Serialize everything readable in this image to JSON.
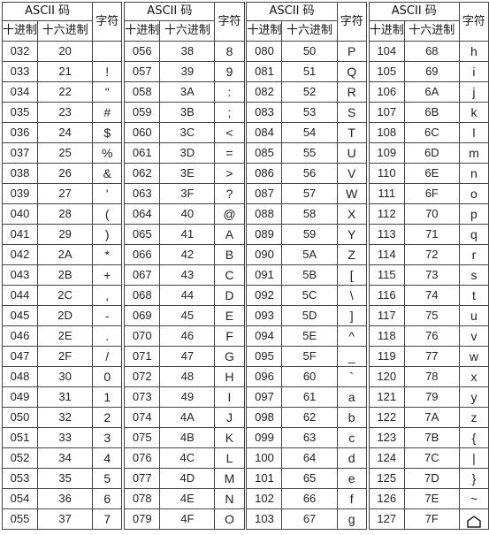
{
  "headers": {
    "ascii": "ASCII 码",
    "dec": "十进制",
    "hex": "十六进制",
    "char": "字符"
  },
  "blocks": [
    [
      [
        "032",
        "20",
        ""
      ],
      [
        "033",
        "21",
        "!"
      ],
      [
        "034",
        "22",
        "\""
      ],
      [
        "035",
        "23",
        "#"
      ],
      [
        "036",
        "24",
        "$"
      ],
      [
        "037",
        "25",
        "%"
      ],
      [
        "038",
        "26",
        "&"
      ],
      [
        "039",
        "27",
        "'"
      ],
      [
        "040",
        "28",
        "("
      ],
      [
        "041",
        "29",
        ")"
      ],
      [
        "042",
        "2A",
        "*"
      ],
      [
        "043",
        "2B",
        "+"
      ],
      [
        "044",
        "2C",
        ","
      ],
      [
        "045",
        "2D",
        "-"
      ],
      [
        "046",
        "2E",
        "."
      ],
      [
        "047",
        "2F",
        "/"
      ],
      [
        "048",
        "30",
        "0"
      ],
      [
        "049",
        "31",
        "1"
      ],
      [
        "050",
        "32",
        "2"
      ],
      [
        "051",
        "33",
        "3"
      ],
      [
        "052",
        "34",
        "4"
      ],
      [
        "053",
        "35",
        "5"
      ],
      [
        "054",
        "36",
        "6"
      ],
      [
        "055",
        "37",
        "7"
      ]
    ],
    [
      [
        "056",
        "38",
        "8"
      ],
      [
        "057",
        "39",
        "9"
      ],
      [
        "058",
        "3A",
        ":"
      ],
      [
        "059",
        "3B",
        ";"
      ],
      [
        "060",
        "3C",
        "<"
      ],
      [
        "061",
        "3D",
        "="
      ],
      [
        "062",
        "3E",
        ">"
      ],
      [
        "063",
        "3F",
        "?"
      ],
      [
        "064",
        "40",
        "@"
      ],
      [
        "065",
        "41",
        "A"
      ],
      [
        "066",
        "42",
        "B"
      ],
      [
        "067",
        "43",
        "C"
      ],
      [
        "068",
        "44",
        "D"
      ],
      [
        "069",
        "45",
        "E"
      ],
      [
        "070",
        "46",
        "F"
      ],
      [
        "071",
        "47",
        "G"
      ],
      [
        "072",
        "48",
        "H"
      ],
      [
        "073",
        "49",
        "I"
      ],
      [
        "074",
        "4A",
        "J"
      ],
      [
        "075",
        "4B",
        "K"
      ],
      [
        "076",
        "4C",
        "L"
      ],
      [
        "077",
        "4D",
        "M"
      ],
      [
        "078",
        "4E",
        "N"
      ],
      [
        "079",
        "4F",
        "O"
      ]
    ],
    [
      [
        "080",
        "50",
        "P"
      ],
      [
        "081",
        "51",
        "Q"
      ],
      [
        "082",
        "52",
        "R"
      ],
      [
        "083",
        "53",
        "S"
      ],
      [
        "084",
        "54",
        "T"
      ],
      [
        "085",
        "55",
        "U"
      ],
      [
        "086",
        "56",
        "V"
      ],
      [
        "087",
        "57",
        "W"
      ],
      [
        "088",
        "58",
        "X"
      ],
      [
        "089",
        "59",
        "Y"
      ],
      [
        "090",
        "5A",
        "Z"
      ],
      [
        "091",
        "5B",
        "["
      ],
      [
        "092",
        "5C",
        "\\"
      ],
      [
        "093",
        "5D",
        "]"
      ],
      [
        "094",
        "5E",
        "^"
      ],
      [
        "095",
        "5F",
        "_"
      ],
      [
        "096",
        "60",
        "`"
      ],
      [
        "097",
        "61",
        "a"
      ],
      [
        "098",
        "62",
        "b"
      ],
      [
        "099",
        "63",
        "c"
      ],
      [
        "100",
        "64",
        "d"
      ],
      [
        "101",
        "65",
        "e"
      ],
      [
        "102",
        "66",
        "f"
      ],
      [
        "103",
        "67",
        "g"
      ]
    ],
    [
      [
        "104",
        "68",
        "h"
      ],
      [
        "105",
        "69",
        "i"
      ],
      [
        "106",
        "6A",
        "j"
      ],
      [
        "107",
        "6B",
        "k"
      ],
      [
        "108",
        "6C",
        "l"
      ],
      [
        "109",
        "6D",
        "m"
      ],
      [
        "110",
        "6E",
        "n"
      ],
      [
        "111",
        "6F",
        "o"
      ],
      [
        "112",
        "70",
        "p"
      ],
      [
        "113",
        "71",
        "q"
      ],
      [
        "114",
        "72",
        "r"
      ],
      [
        "115",
        "73",
        "s"
      ],
      [
        "116",
        "74",
        "t"
      ],
      [
        "117",
        "75",
        "u"
      ],
      [
        "118",
        "76",
        "v"
      ],
      [
        "119",
        "77",
        "w"
      ],
      [
        "120",
        "78",
        "x"
      ],
      [
        "121",
        "79",
        "y"
      ],
      [
        "122",
        "7A",
        "z"
      ],
      [
        "123",
        "7B",
        "{"
      ],
      [
        "124",
        "7C",
        "|"
      ],
      [
        "125",
        "7D",
        "}"
      ],
      [
        "126",
        "7E",
        "~"
      ],
      [
        "127",
        "7F",
        ""
      ]
    ]
  ],
  "del_icon": "house-shaped-delete-icon"
}
